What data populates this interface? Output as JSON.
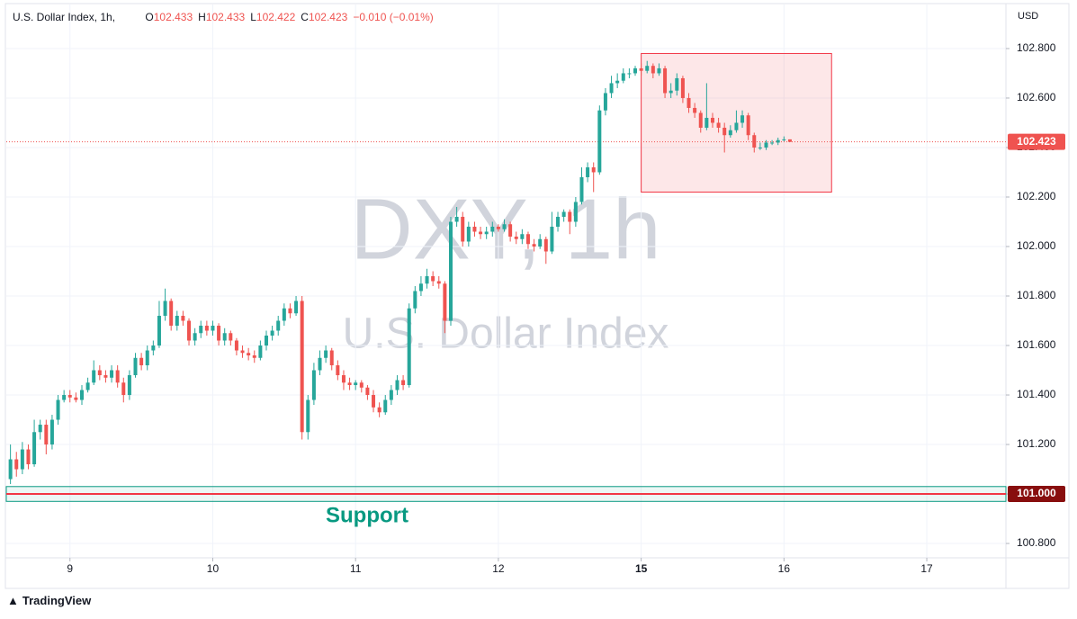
{
  "header": {
    "title": "U.S. Dollar Index, 1h,",
    "ohlc": [
      {
        "key": "O",
        "value": "102.433"
      },
      {
        "key": "H",
        "value": "102.433"
      },
      {
        "key": "L",
        "value": "102.422"
      },
      {
        "key": "C",
        "value": "102.423"
      }
    ],
    "change": "−0.010 (−0.01%)"
  },
  "brand": "TradingView",
  "chart_data": {
    "type": "candlestick",
    "currency": "USD",
    "watermark": [
      "DXY, 1h",
      "U.S. Dollar Index"
    ],
    "up_color": "#26a69a",
    "down_color": "#ef5350",
    "xlim": [
      -10.7,
      157.3
    ],
    "ylim": [
      100.742,
      102.978
    ],
    "xticks": [
      {
        "value": 0,
        "label": "9"
      },
      {
        "value": 24,
        "label": "10"
      },
      {
        "value": 48,
        "label": "11"
      },
      {
        "value": 72,
        "label": "12"
      },
      {
        "value": 96,
        "label": "15"
      },
      {
        "value": 120,
        "label": "16"
      },
      {
        "value": 144,
        "label": "17"
      }
    ],
    "yticks": [
      {
        "value": 100.8,
        "label": "100.800"
      },
      {
        "value": 101.0,
        "label": "101.000"
      },
      {
        "value": 101.2,
        "label": "101.200"
      },
      {
        "value": 101.4,
        "label": "101.400"
      },
      {
        "value": 101.6,
        "label": "101.600"
      },
      {
        "value": 101.8,
        "label": "101.800"
      },
      {
        "value": 102.0,
        "label": "102.000"
      },
      {
        "value": 102.2,
        "label": "102.200"
      },
      {
        "value": 102.4,
        "label": "102.400"
      },
      {
        "value": 102.6,
        "label": "102.600"
      },
      {
        "value": 102.8,
        "label": "102.800"
      }
    ],
    "grid": true,
    "last_price": 102.423,
    "support": {
      "value": 101.0,
      "value_label": "101.000",
      "band": [
        100.97,
        101.03
      ],
      "label": "Support",
      "color": "#f23645",
      "band_color": "#089981"
    },
    "zone": {
      "x": [
        96,
        128
      ],
      "y": [
        102.22,
        102.78
      ],
      "color": "#f23645"
    },
    "x": [
      -10,
      -9,
      -8,
      -7,
      -6,
      -5,
      -4,
      -3,
      -2,
      -1,
      0,
      1,
      2,
      3,
      4,
      5,
      6,
      7,
      8,
      9,
      10,
      11,
      12,
      13,
      14,
      15,
      16,
      17,
      18,
      19,
      20,
      21,
      22,
      23,
      24,
      25,
      26,
      27,
      28,
      29,
      30,
      31,
      32,
      33,
      34,
      35,
      36,
      37,
      38,
      39,
      40,
      41,
      42,
      43,
      44,
      45,
      46,
      47,
      48,
      49,
      50,
      51,
      52,
      53,
      54,
      55,
      56,
      57,
      58,
      59,
      60,
      61,
      62,
      63,
      64,
      65,
      66,
      67,
      68,
      69,
      70,
      71,
      72,
      73,
      74,
      75,
      76,
      77,
      78,
      79,
      80,
      81,
      82,
      83,
      84,
      85,
      86,
      87,
      88,
      89,
      90,
      91,
      92,
      93,
      94,
      95,
      96,
      97,
      98,
      99,
      100,
      101,
      102,
      103,
      104,
      105,
      106,
      107,
      108,
      109,
      110,
      111,
      112,
      113,
      114,
      115,
      116,
      117,
      118,
      119,
      120,
      121
    ],
    "open": [
      101.06,
      101.14,
      101.1,
      101.18,
      101.12,
      101.25,
      101.28,
      101.2,
      101.3,
      101.38,
      101.4,
      101.39,
      101.38,
      101.42,
      101.45,
      101.5,
      101.48,
      101.47,
      101.5,
      101.45,
      101.4,
      101.48,
      101.55,
      101.52,
      101.58,
      101.6,
      101.72,
      101.78,
      101.68,
      101.72,
      101.7,
      101.62,
      101.65,
      101.68,
      101.66,
      101.68,
      101.62,
      101.65,
      101.62,
      101.58,
      101.57,
      101.56,
      101.55,
      101.6,
      101.64,
      101.66,
      101.7,
      101.75,
      101.73,
      101.78,
      101.25,
      101.38,
      101.5,
      101.55,
      101.58,
      101.52,
      101.48,
      101.45,
      101.44,
      101.45,
      101.43,
      101.4,
      101.35,
      101.33,
      101.38,
      101.42,
      101.46,
      101.44,
      101.75,
      101.82,
      101.85,
      101.88,
      101.86,
      101.85,
      101.7,
      102.1,
      102.12,
      102.02,
      102.08,
      102.06,
      102.05,
      102.06,
      102.08,
      102.07,
      102.09,
      102.04,
      102.03,
      102.05,
      102.01,
      102.0,
      102.03,
      101.98,
      102.08,
      102.12,
      102.14,
      102.1,
      102.18,
      102.28,
      102.32,
      102.3,
      102.55,
      102.62,
      102.66,
      102.67,
      102.7,
      102.7,
      102.72,
      102.71,
      102.73,
      102.7,
      102.72,
      102.62,
      102.63,
      102.68,
      102.6,
      102.56,
      102.54,
      102.48,
      102.52,
      102.5,
      102.48,
      102.45,
      102.47,
      102.5,
      102.53,
      102.45,
      102.4,
      102.4,
      102.42,
      102.42,
      102.43,
      102.433
    ],
    "high": [
      101.2,
      101.17,
      101.21,
      101.2,
      101.3,
      101.3,
      101.3,
      101.32,
      101.4,
      101.42,
      101.42,
      101.41,
      101.44,
      101.47,
      101.54,
      101.52,
      101.5,
      101.52,
      101.52,
      101.47,
      101.5,
      101.57,
      101.57,
      101.6,
      101.62,
      101.78,
      101.83,
      101.79,
      101.74,
      101.74,
      101.71,
      101.67,
      101.7,
      101.7,
      101.7,
      101.69,
      101.67,
      101.66,
      101.63,
      101.6,
      101.59,
      101.58,
      101.62,
      101.66,
      101.68,
      101.72,
      101.77,
      101.77,
      101.8,
      101.8,
      101.4,
      101.53,
      101.58,
      101.6,
      101.59,
      101.54,
      101.5,
      101.47,
      101.46,
      101.46,
      101.44,
      101.42,
      101.37,
      101.4,
      101.44,
      101.48,
      101.48,
      101.77,
      101.84,
      101.88,
      101.91,
      101.9,
      101.88,
      101.86,
      102.12,
      102.16,
      102.14,
      102.1,
      102.1,
      102.08,
      102.08,
      102.1,
      102.09,
      102.11,
      102.1,
      102.06,
      102.07,
      102.06,
      102.03,
      102.05,
      102.04,
      102.14,
      102.14,
      102.15,
      102.15,
      102.2,
      102.32,
      102.34,
      102.34,
      102.57,
      102.64,
      102.69,
      102.7,
      102.72,
      102.72,
      102.73,
      102.74,
      102.75,
      102.74,
      102.74,
      102.73,
      102.66,
      102.7,
      102.69,
      102.62,
      102.58,
      102.55,
      102.66,
      102.54,
      102.52,
      102.5,
      102.49,
      102.55,
      102.55,
      102.54,
      102.46,
      102.42,
      102.43,
      102.43,
      102.44,
      102.445,
      102.433
    ],
    "low": [
      101.04,
      101.07,
      101.08,
      101.1,
      101.11,
      101.22,
      101.16,
      101.18,
      101.28,
      101.37,
      101.37,
      101.37,
      101.36,
      101.41,
      101.44,
      101.46,
      101.45,
      101.45,
      101.43,
      101.37,
      101.38,
      101.47,
      101.5,
      101.5,
      101.56,
      101.59,
      101.7,
      101.66,
      101.66,
      101.68,
      101.6,
      101.6,
      101.63,
      101.64,
      101.64,
      101.6,
      101.6,
      101.6,
      101.56,
      101.55,
      101.54,
      101.53,
      101.54,
      101.58,
      101.62,
      101.64,
      101.68,
      101.71,
      101.72,
      101.22,
      101.22,
      101.36,
      101.48,
      101.53,
      101.5,
      101.46,
      101.42,
      101.42,
      101.42,
      101.41,
      101.38,
      101.33,
      101.31,
      101.32,
      101.36,
      101.4,
      101.42,
      101.43,
      101.73,
      101.8,
      101.83,
      101.84,
      101.83,
      101.65,
      101.68,
      102.08,
      102.0,
      102.0,
      102.04,
      102.03,
      102.03,
      102.04,
      102.06,
      102.06,
      102.02,
      102.01,
      102.01,
      101.99,
      101.98,
      101.99,
      101.93,
      101.97,
      102.06,
      102.1,
      102.05,
      102.08,
      102.17,
      102.26,
      102.22,
      102.29,
      102.53,
      102.6,
      102.64,
      102.66,
      102.68,
      102.69,
      102.69,
      102.7,
      102.68,
      102.69,
      102.6,
      102.6,
      102.61,
      102.58,
      102.54,
      102.52,
      102.46,
      102.47,
      102.48,
      102.46,
      102.38,
      102.44,
      102.46,
      102.48,
      102.43,
      102.38,
      102.39,
      102.39,
      102.41,
      102.41,
      102.425,
      102.422
    ],
    "close": [
      101.14,
      101.1,
      101.18,
      101.12,
      101.25,
      101.28,
      101.2,
      101.3,
      101.38,
      101.4,
      101.39,
      101.38,
      101.42,
      101.45,
      101.5,
      101.48,
      101.47,
      101.5,
      101.45,
      101.4,
      101.48,
      101.55,
      101.52,
      101.58,
      101.6,
      101.72,
      101.78,
      101.68,
      101.72,
      101.7,
      101.62,
      101.65,
      101.68,
      101.66,
      101.68,
      101.62,
      101.65,
      101.62,
      101.58,
      101.57,
      101.56,
      101.55,
      101.6,
      101.64,
      101.66,
      101.7,
      101.75,
      101.73,
      101.78,
      101.25,
      101.38,
      101.5,
      101.55,
      101.58,
      101.52,
      101.48,
      101.45,
      101.44,
      101.45,
      101.43,
      101.4,
      101.35,
      101.33,
      101.38,
      101.42,
      101.46,
      101.44,
      101.75,
      101.82,
      101.85,
      101.88,
      101.86,
      101.85,
      101.7,
      102.1,
      102.12,
      102.02,
      102.08,
      102.06,
      102.05,
      102.06,
      102.08,
      102.07,
      102.09,
      102.04,
      102.03,
      102.05,
      102.01,
      102.0,
      102.03,
      101.98,
      102.08,
      102.12,
      102.14,
      102.1,
      102.18,
      102.28,
      102.32,
      102.3,
      102.55,
      102.62,
      102.66,
      102.67,
      102.7,
      102.7,
      102.72,
      102.71,
      102.73,
      102.7,
      102.72,
      102.62,
      102.63,
      102.68,
      102.6,
      102.56,
      102.54,
      102.48,
      102.52,
      102.5,
      102.48,
      102.45,
      102.47,
      102.5,
      102.53,
      102.45,
      102.4,
      102.4,
      102.42,
      102.42,
      102.43,
      102.433,
      102.423
    ]
  }
}
